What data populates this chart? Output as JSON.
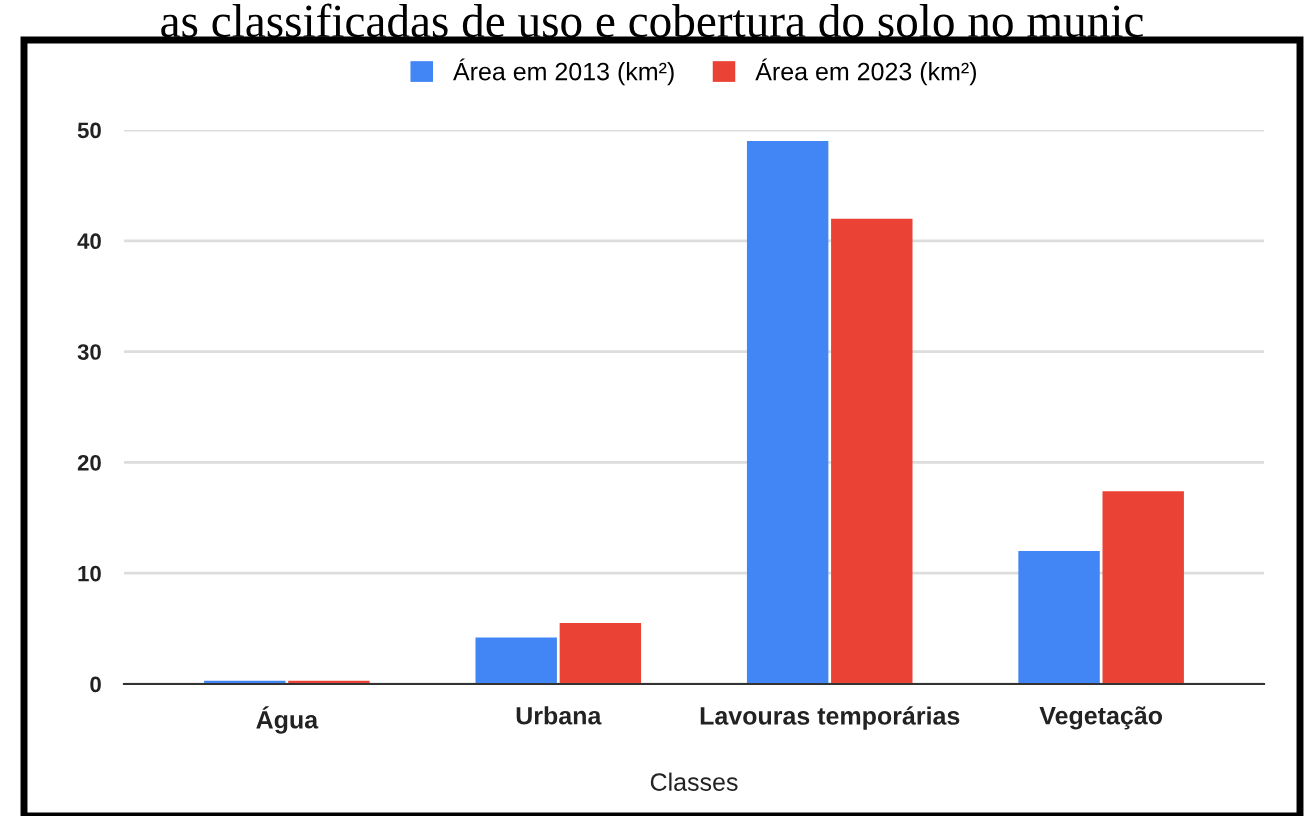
{
  "chart_data": {
    "type": "bar",
    "title": "as classificadas de uso e cobertura do solo no munic",
    "xlabel": "Classes",
    "categories": [
      "Água",
      "Urbana",
      "Lavouras temporárias",
      "Vegetação"
    ],
    "series": [
      {
        "name": "Área em 2013 (km²)",
        "color": "#4285f4",
        "values": [
          0.3,
          4.2,
          49,
          12
        ]
      },
      {
        "name": "Área em 2023 (km²)",
        "color": "#ea4335",
        "values": [
          0.3,
          5.5,
          42,
          17.4
        ]
      }
    ],
    "ylim": [
      0,
      50
    ],
    "yticks": [
      0,
      10,
      20,
      30,
      40,
      50
    ],
    "grid": "y",
    "legend": "top"
  }
}
